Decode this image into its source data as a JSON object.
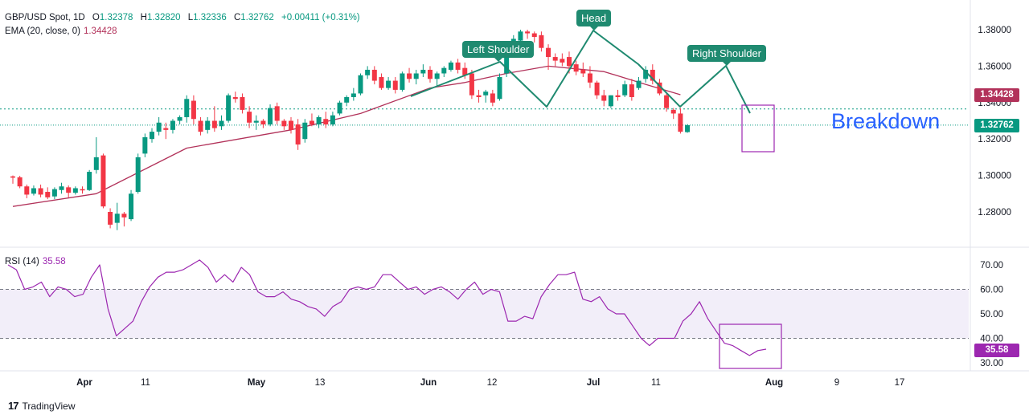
{
  "header": {
    "symbol": "GBP/USD Spot, 1D",
    "o_label": "O",
    "o_value": "1.32378",
    "h_label": "H",
    "h_value": "1.32820",
    "l_label": "L",
    "l_value": "1.32336",
    "c_label": "C",
    "c_value": "1.32762",
    "change": "+0.00411 (+0.31%)",
    "ema_label": "EMA (20, close, 0)",
    "ema_value": "1.34428",
    "rsi_label": "RSI (14)",
    "rsi_value": "35.58"
  },
  "annotations": {
    "left_shoulder": "Left Shoulder",
    "head": "Head",
    "right_shoulder": "Right Shoulder",
    "breakdown": "Breakdown"
  },
  "price_tags": {
    "ema": "1.34428",
    "close": "1.32762"
  },
  "rsi_tag": "35.58",
  "brand": {
    "logo": "17",
    "name": "TradingView"
  },
  "colors": {
    "up": "#089981",
    "down": "#f23645",
    "ema": "#b2325a",
    "rsi": "#9c27b0",
    "annotation": "#1f8a70",
    "box": "#9c27b0",
    "breakdown": "#2962ff"
  },
  "chart_data": [
    {
      "type": "candlestick",
      "title": "GBP/USD Spot, 1D",
      "ylim": [
        1.26,
        1.39
      ],
      "y_ticks": [
        "1.28000",
        "1.30000",
        "1.32000",
        "1.34000",
        "1.36000",
        "1.38000"
      ],
      "x_ticks": [
        "Apr",
        "11",
        "May",
        "13",
        "Jun",
        "12",
        "Jul",
        "11",
        "Aug",
        "9",
        "17"
      ],
      "grid": false,
      "candles": [
        [
          1.2995,
          1.3,
          1.2955,
          1.2988
        ],
        [
          1.299,
          1.2998,
          1.293,
          1.294
        ],
        [
          1.294,
          1.295,
          1.2875,
          1.2895
        ],
        [
          1.29,
          1.2945,
          1.289,
          1.293
        ],
        [
          1.293,
          1.295,
          1.288,
          1.2895
        ],
        [
          1.291,
          1.2935,
          1.287,
          1.288
        ],
        [
          1.2885,
          1.2935,
          1.287,
          1.2925
        ],
        [
          1.292,
          1.296,
          1.29,
          1.294
        ],
        [
          1.2935,
          1.2945,
          1.288,
          1.2905
        ],
        [
          1.2905,
          1.294,
          1.2895,
          1.293
        ],
        [
          1.2925,
          1.294,
          1.29,
          1.2918
        ],
        [
          1.292,
          1.303,
          1.2915,
          1.302
        ],
        [
          1.303,
          1.321,
          1.301,
          1.31
        ],
        [
          1.311,
          1.312,
          1.282,
          1.283
        ],
        [
          1.28,
          1.282,
          1.271,
          1.273
        ],
        [
          1.274,
          1.285,
          1.27,
          1.279
        ],
        [
          1.279,
          1.28,
          1.272,
          1.277
        ],
        [
          1.276,
          1.292,
          1.275,
          1.29
        ],
        [
          1.291,
          1.312,
          1.29,
          1.31
        ],
        [
          1.312,
          1.323,
          1.31,
          1.321
        ],
        [
          1.32,
          1.326,
          1.318,
          1.324
        ],
        [
          1.324,
          1.332,
          1.322,
          1.329
        ],
        [
          1.326,
          1.329,
          1.32,
          1.325
        ],
        [
          1.325,
          1.331,
          1.323,
          1.33
        ],
        [
          1.33,
          1.333,
          1.328,
          1.332
        ],
        [
          1.332,
          1.344,
          1.329,
          1.342
        ],
        [
          1.341,
          1.344,
          1.328,
          1.331
        ],
        [
          1.33,
          1.332,
          1.322,
          1.324
        ],
        [
          1.325,
          1.332,
          1.323,
          1.33
        ],
        [
          1.33,
          1.338,
          1.324,
          1.326
        ],
        [
          1.327,
          1.333,
          1.325,
          1.33
        ],
        [
          1.33,
          1.345,
          1.329,
          1.344
        ],
        [
          1.343,
          1.346,
          1.34,
          1.342
        ],
        [
          1.343,
          1.345,
          1.334,
          1.336
        ],
        [
          1.335,
          1.338,
          1.326,
          1.329
        ],
        [
          1.329,
          1.333,
          1.325,
          1.33
        ],
        [
          1.33,
          1.331,
          1.326,
          1.328
        ],
        [
          1.328,
          1.339,
          1.327,
          1.337
        ],
        [
          1.338,
          1.34,
          1.328,
          1.33
        ],
        [
          1.33,
          1.331,
          1.325,
          1.327
        ],
        [
          1.33,
          1.332,
          1.323,
          1.325
        ],
        [
          1.328,
          1.331,
          1.314,
          1.317
        ],
        [
          1.32,
          1.331,
          1.318,
          1.329
        ],
        [
          1.33,
          1.334,
          1.327,
          1.328
        ],
        [
          1.328,
          1.333,
          1.326,
          1.332
        ],
        [
          1.331,
          1.335,
          1.326,
          1.328
        ],
        [
          1.328,
          1.335,
          1.327,
          1.333
        ],
        [
          1.334,
          1.341,
          1.333,
          1.34
        ],
        [
          1.34,
          1.344,
          1.338,
          1.343
        ],
        [
          1.343,
          1.348,
          1.341,
          1.345
        ],
        [
          1.345,
          1.356,
          1.344,
          1.355
        ],
        [
          1.355,
          1.36,
          1.353,
          1.358
        ],
        [
          1.358,
          1.36,
          1.35,
          1.352
        ],
        [
          1.354,
          1.356,
          1.347,
          1.348
        ],
        [
          1.348,
          1.354,
          1.347,
          1.352
        ],
        [
          1.352,
          1.354,
          1.345,
          1.347
        ],
        [
          1.347,
          1.357,
          1.346,
          1.356
        ],
        [
          1.356,
          1.359,
          1.351,
          1.353
        ],
        [
          1.353,
          1.358,
          1.35,
          1.356
        ],
        [
          1.356,
          1.361,
          1.354,
          1.358
        ],
        [
          1.358,
          1.36,
          1.351,
          1.353
        ],
        [
          1.353,
          1.357,
          1.349,
          1.356
        ],
        [
          1.356,
          1.36,
          1.354,
          1.359
        ],
        [
          1.358,
          1.363,
          1.357,
          1.362
        ],
        [
          1.362,
          1.364,
          1.356,
          1.358
        ],
        [
          1.359,
          1.362,
          1.353,
          1.355
        ],
        [
          1.356,
          1.358,
          1.342,
          1.344
        ],
        [
          1.344,
          1.347,
          1.34,
          1.343
        ],
        [
          1.344,
          1.347,
          1.34,
          1.346
        ],
        [
          1.345,
          1.347,
          1.338,
          1.34
        ],
        [
          1.342,
          1.356,
          1.341,
          1.354
        ],
        [
          1.356,
          1.37,
          1.354,
          1.368
        ],
        [
          1.369,
          1.377,
          1.366,
          1.375
        ],
        [
          1.374,
          1.38,
          1.372,
          1.379
        ],
        [
          1.379,
          1.38,
          1.375,
          1.378
        ],
        [
          1.378,
          1.379,
          1.373,
          1.376
        ],
        [
          1.377,
          1.379,
          1.368,
          1.37
        ],
        [
          1.37,
          1.372,
          1.358,
          1.365
        ],
        [
          1.365,
          1.367,
          1.36,
          1.363
        ],
        [
          1.364,
          1.367,
          1.36,
          1.362
        ],
        [
          1.365,
          1.368,
          1.356,
          1.36
        ],
        [
          1.361,
          1.363,
          1.355,
          1.357
        ],
        [
          1.358,
          1.362,
          1.354,
          1.356
        ],
        [
          1.356,
          1.36,
          1.348,
          1.351
        ],
        [
          1.351,
          1.352,
          1.342,
          1.344
        ],
        [
          1.344,
          1.347,
          1.338,
          1.341
        ],
        [
          1.338,
          1.344,
          1.337,
          1.344
        ],
        [
          1.344,
          1.347,
          1.341,
          1.343
        ],
        [
          1.344,
          1.352,
          1.343,
          1.35
        ],
        [
          1.35,
          1.353,
          1.341,
          1.343
        ],
        [
          1.348,
          1.354,
          1.347,
          1.352
        ],
        [
          1.353,
          1.36,
          1.351,
          1.358
        ],
        [
          1.358,
          1.361,
          1.35,
          1.352
        ],
        [
          1.351,
          1.353,
          1.344,
          1.345
        ],
        [
          1.344,
          1.345,
          1.335,
          1.337
        ],
        [
          1.336,
          1.337,
          1.331,
          1.334
        ],
        [
          1.334,
          1.337,
          1.323,
          1.324
        ],
        [
          1.3238,
          1.3282,
          1.3234,
          1.3276
        ]
      ],
      "ema20_endpoints": [
        [
          0,
          1.283
        ],
        [
          12,
          1.29
        ],
        [
          25,
          1.315
        ],
        [
          40,
          1.325
        ],
        [
          50,
          1.334
        ],
        [
          60,
          1.348
        ],
        [
          65,
          1.351
        ],
        [
          71,
          1.356
        ],
        [
          77,
          1.36
        ],
        [
          85,
          1.357
        ],
        [
          91,
          1.35
        ],
        [
          96,
          1.3443
        ]
      ],
      "last_close": 1.32762,
      "ema_last": 1.34428
    },
    {
      "type": "line",
      "title": "RSI (14)",
      "ylim": [
        25,
        75
      ],
      "y_ticks": [
        "30.00",
        "40.00",
        "50.00",
        "60.00",
        "70.00"
      ],
      "band": [
        40,
        60
      ],
      "series": [
        {
          "values": [
            70,
            68,
            60,
            61,
            63,
            57,
            61,
            60,
            57,
            58,
            65,
            70,
            52,
            41,
            44,
            47,
            55,
            61,
            65,
            67,
            67,
            68,
            70,
            72,
            69,
            63,
            66,
            63,
            69,
            66,
            59,
            57,
            57,
            59,
            56,
            55,
            53,
            52,
            49,
            53,
            55,
            60,
            61,
            60,
            61,
            66,
            66,
            63,
            60,
            61,
            58,
            60,
            61,
            59,
            56,
            60,
            63,
            58,
            60,
            59,
            47,
            47,
            49,
            48,
            57,
            62,
            66,
            66,
            67,
            56,
            55,
            57,
            52,
            50,
            50,
            45,
            40,
            37,
            40,
            40,
            40,
            47,
            50,
            55,
            48,
            43,
            38,
            37,
            35,
            33,
            35,
            35.58
          ]
        }
      ],
      "last_value": 35.58
    }
  ]
}
